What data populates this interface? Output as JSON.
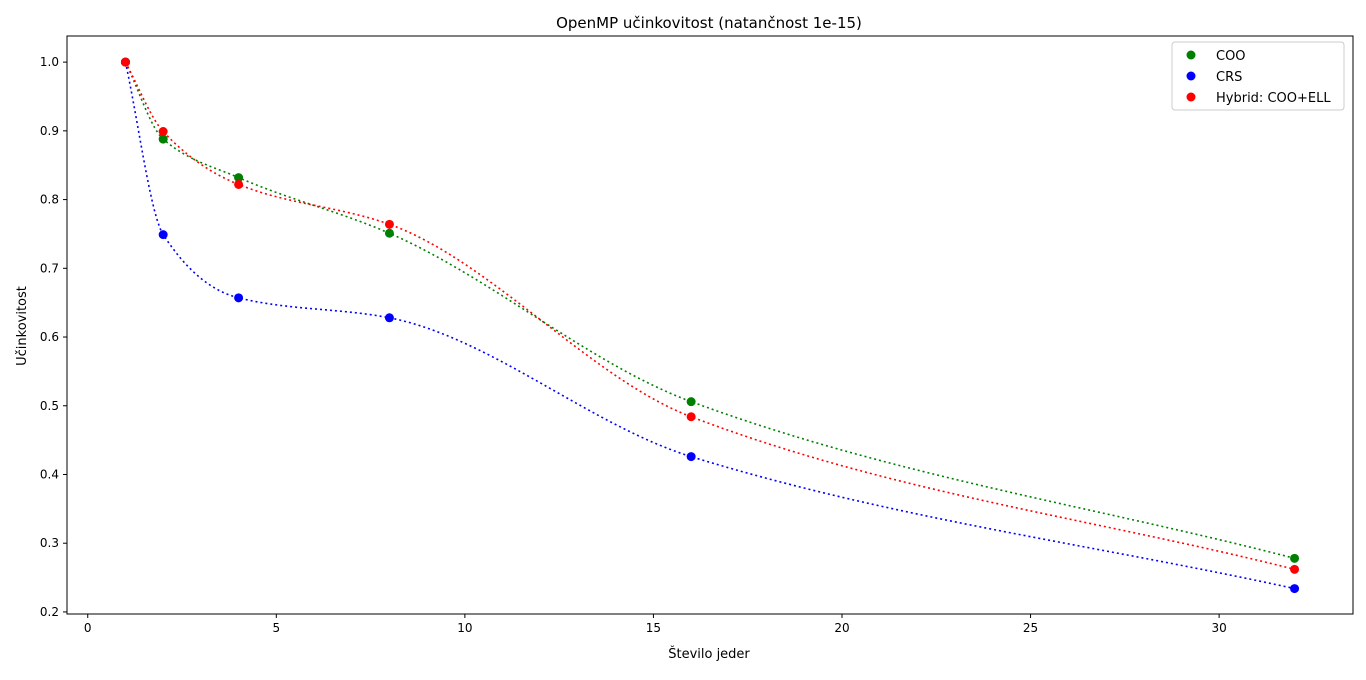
{
  "chart_data": {
    "type": "line",
    "title": "OpenMP učinkovitost (natančnost 1e-15)",
    "xlabel": "Število jeder",
    "ylabel": "Učinkovitost",
    "xlim": [
      -0.55,
      33.55
    ],
    "ylim": [
      0.197,
      1.038
    ],
    "xticks": [
      0,
      5,
      10,
      15,
      20,
      25,
      30
    ],
    "yticks": [
      0.2,
      0.3,
      0.4,
      0.5,
      0.6,
      0.7,
      0.8,
      0.9,
      1.0
    ],
    "xtick_labels": [
      "0",
      "5",
      "10",
      "15",
      "20",
      "25",
      "30"
    ],
    "ytick_labels": [
      "0.2",
      "0.3",
      "0.4",
      "0.5",
      "0.6",
      "0.7",
      "0.8",
      "0.9",
      "1.0"
    ],
    "grid": false,
    "legend_position": "top-right",
    "x": [
      1,
      2,
      4,
      8,
      16,
      32
    ],
    "series": [
      {
        "name": "COO",
        "color": "#008000",
        "values": [
          1.0,
          0.888,
          0.832,
          0.751,
          0.506,
          0.278
        ]
      },
      {
        "name": "CRS",
        "color": "#0000ff",
        "values": [
          1.0,
          0.749,
          0.657,
          0.628,
          0.426,
          0.234
        ]
      },
      {
        "name": "Hybrid: COO+ELL",
        "color": "#ff0000",
        "values": [
          1.0,
          0.899,
          0.822,
          0.764,
          0.484,
          0.262
        ]
      }
    ]
  }
}
